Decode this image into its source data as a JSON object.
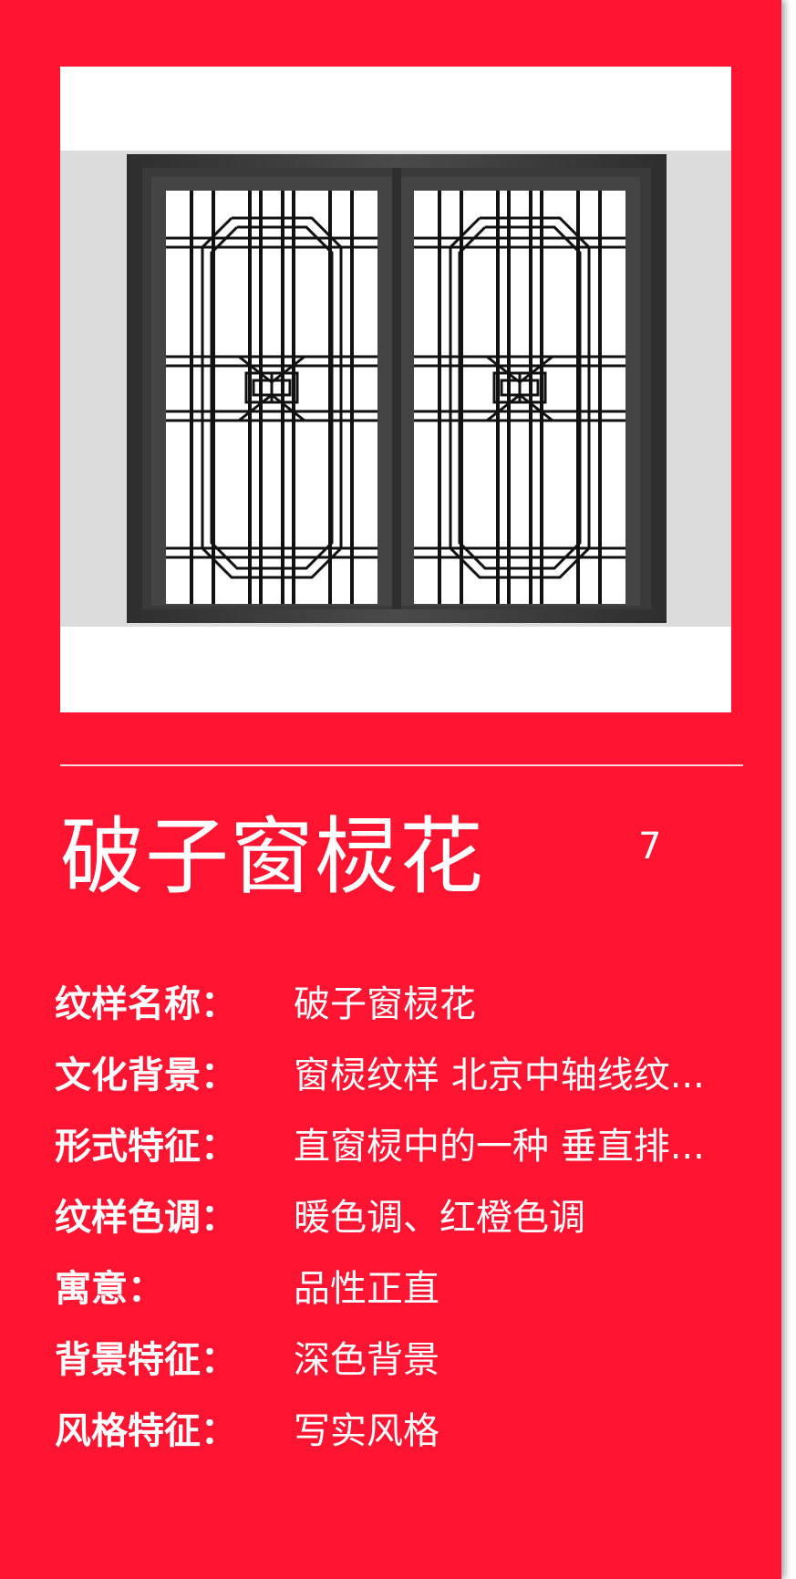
{
  "colors": {
    "background": "#ff1431",
    "text": "#ffffff",
    "frame": "#3a3a3a",
    "wall": "#dcdcdc"
  },
  "image": {
    "icon": "window-lattice-image"
  },
  "title": "破子窗棂花",
  "index": "7",
  "attributes": [
    {
      "label": "纹样名称：",
      "value": "破子窗棂花"
    },
    {
      "label": "文化背景：",
      "value": "窗棂纹样 北京中轴线纹..."
    },
    {
      "label": "形式特征：",
      "value": "直窗棂中的一种 垂直排..."
    },
    {
      "label": "纹样色调：",
      "value": "暖色调、红橙色调"
    },
    {
      "label": "寓意：",
      "value": "品性正直"
    },
    {
      "label": "背景特征：",
      "value": "深色背景"
    },
    {
      "label": "风格特征：",
      "value": "写实风格"
    }
  ]
}
